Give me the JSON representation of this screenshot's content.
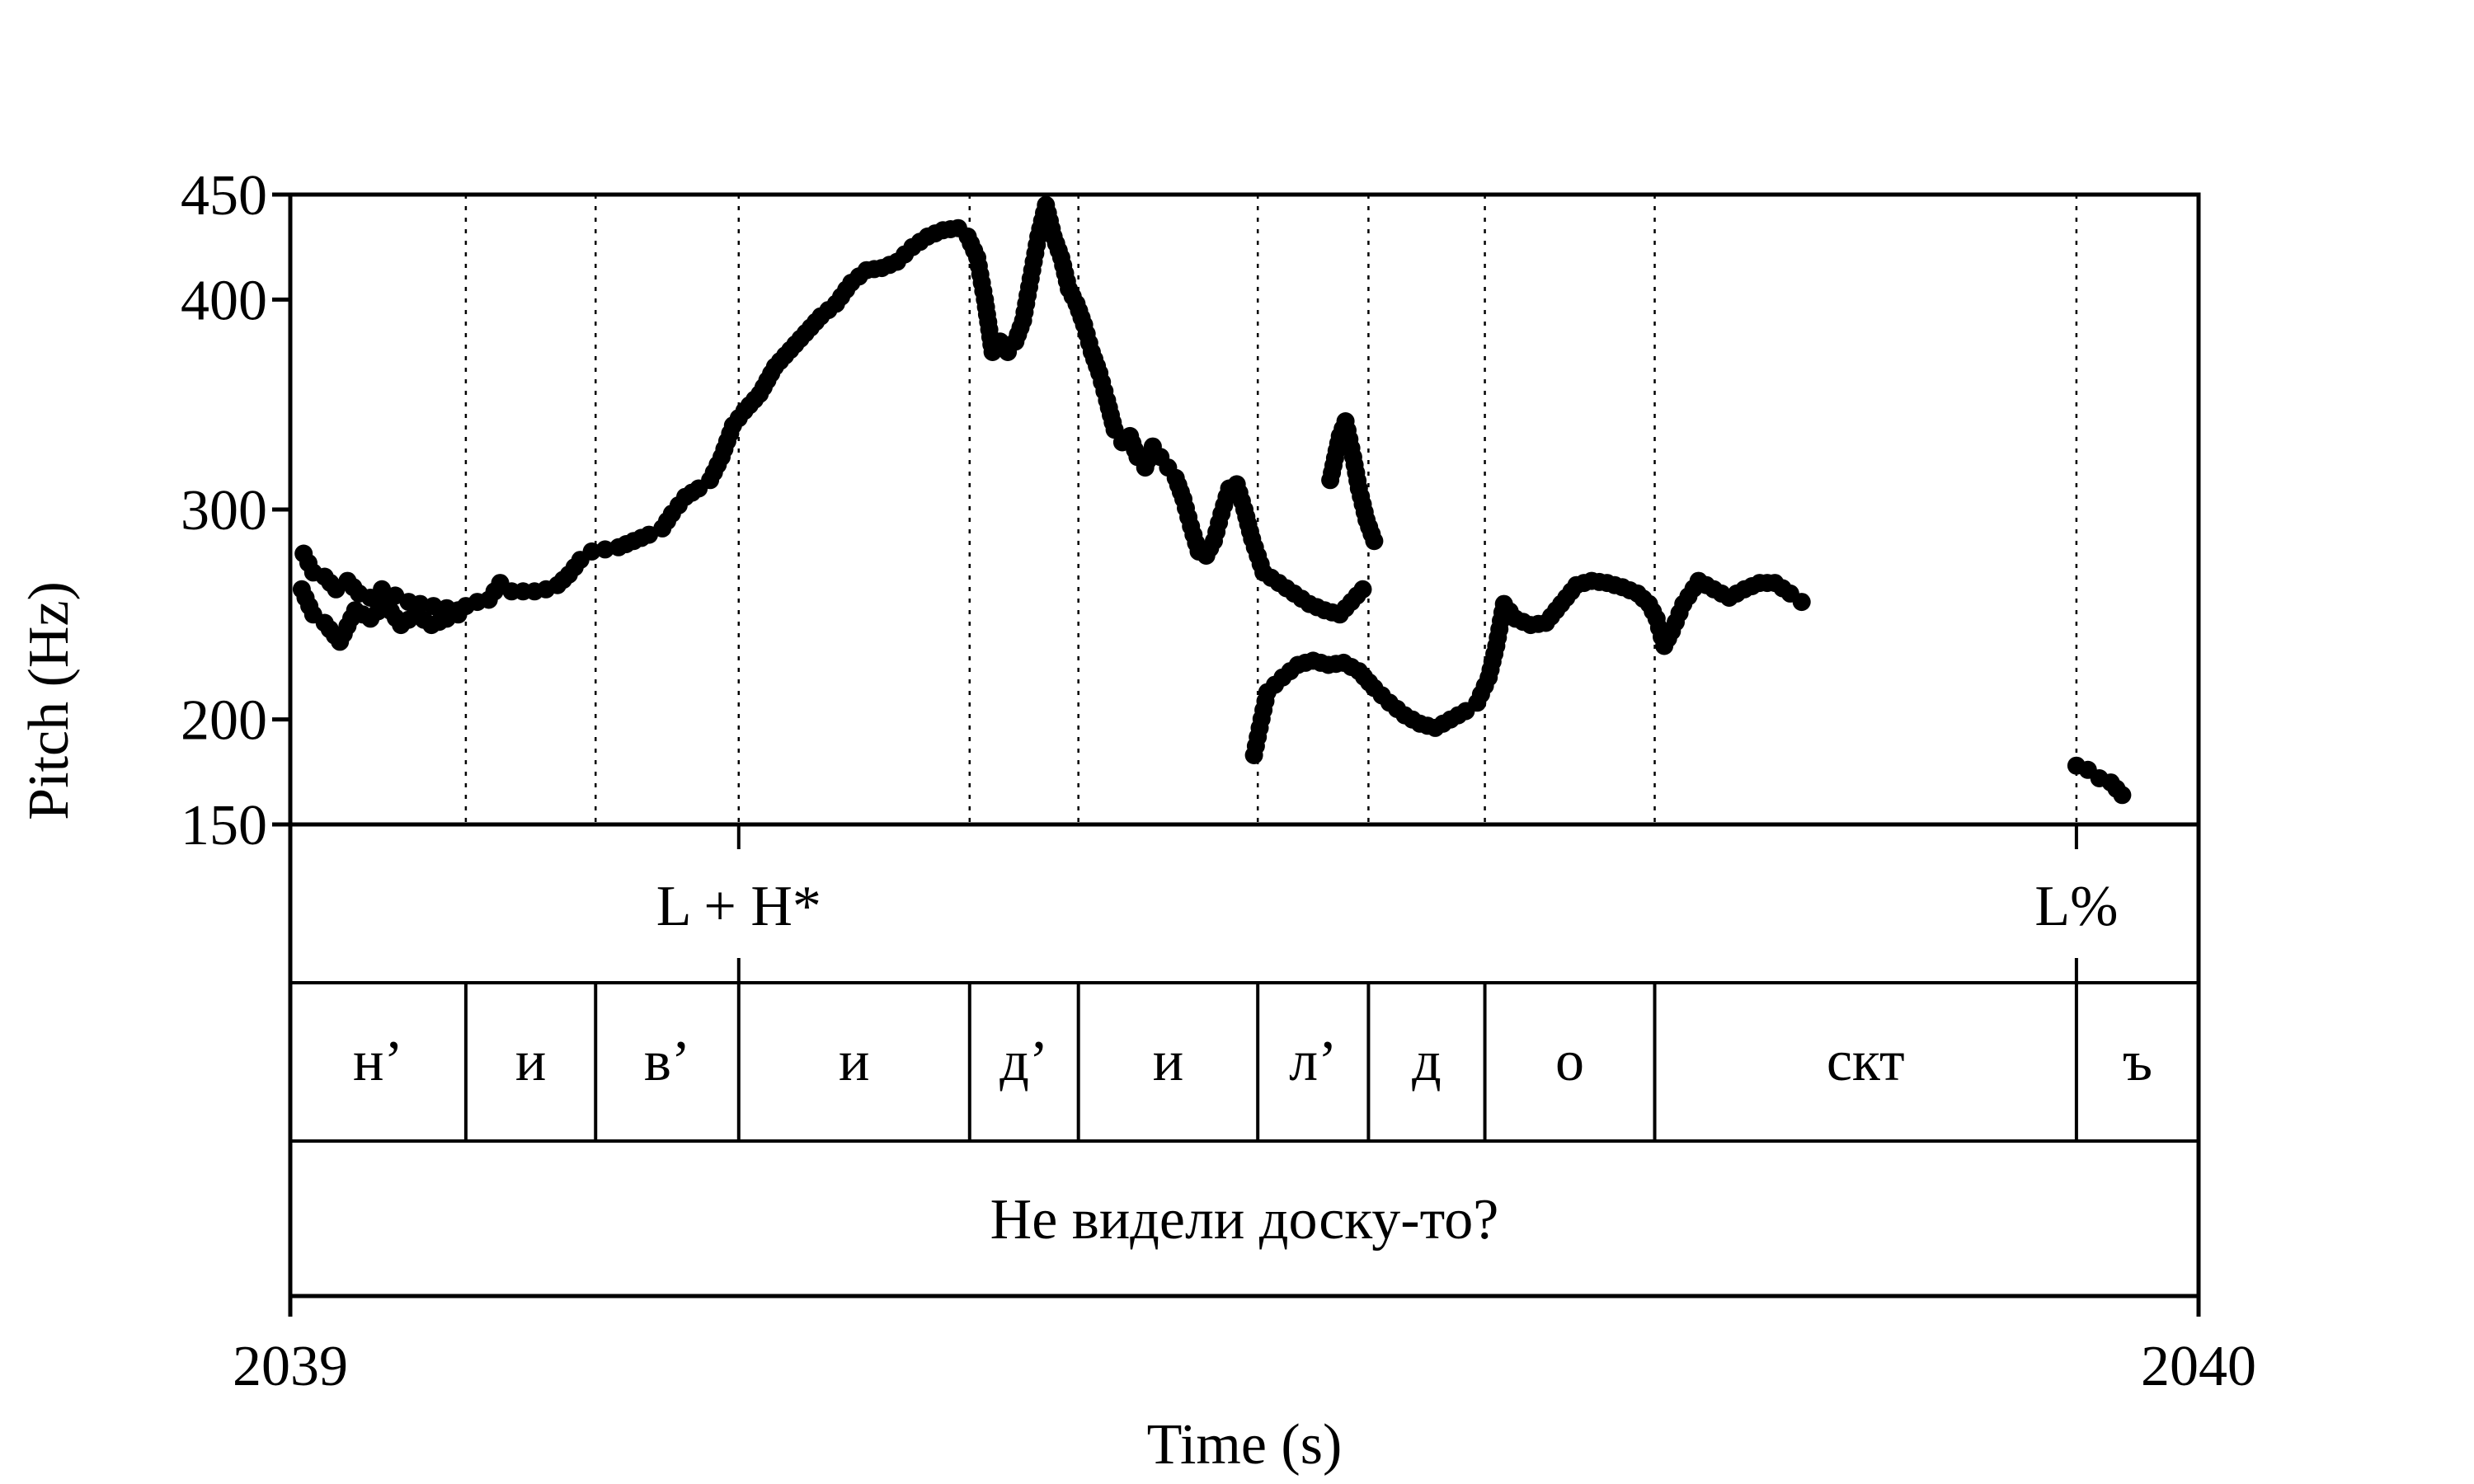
{
  "chart_data": {
    "type": "scatter",
    "xlabel": "Time (s)",
    "ylabel": "Pitch (Hz)",
    "xlim": [
      2039,
      2040
    ],
    "ylim": [
      150,
      450
    ],
    "x_ticks": [
      "2039",
      "2040"
    ],
    "y_ticks": [
      {
        "value": 150,
        "label": "150"
      },
      {
        "value": 200,
        "label": "200"
      },
      {
        "value": 300,
        "label": "300"
      },
      {
        "value": 400,
        "label": "400"
      },
      {
        "value": 450,
        "label": "450"
      }
    ],
    "boundaries": [
      2039.092,
      2039.16,
      2039.235,
      2039.356,
      2039.413,
      2039.507,
      2039.565,
      2039.626,
      2039.715,
      2039.936
    ],
    "tones": [
      {
        "label": "L + H*",
        "time": 2039.235
      },
      {
        "label": "L%",
        "time": 2039.936
      }
    ],
    "segments": [
      {
        "label": "н’",
        "start": 2039.0,
        "end": 2039.092
      },
      {
        "label": "и",
        "start": 2039.092,
        "end": 2039.16
      },
      {
        "label": "в’",
        "start": 2039.16,
        "end": 2039.235
      },
      {
        "label": "и",
        "start": 2039.235,
        "end": 2039.356
      },
      {
        "label": "д’",
        "start": 2039.356,
        "end": 2039.413
      },
      {
        "label": "и",
        "start": 2039.413,
        "end": 2039.507
      },
      {
        "label": "л’",
        "start": 2039.507,
        "end": 2039.565
      },
      {
        "label": "д",
        "start": 2039.565,
        "end": 2039.626
      },
      {
        "label": "о",
        "start": 2039.626,
        "end": 2039.715
      },
      {
        "label": "скт",
        "start": 2039.715,
        "end": 2039.936
      },
      {
        "label": "ъ",
        "start": 2039.936,
        "end": 2040.0
      }
    ],
    "sentence": "Не видели доску-то?",
    "pitch_contours": [
      [
        [
          2039.007,
          279
        ],
        [
          2039.012,
          270
        ],
        [
          2039.018,
          268
        ],
        [
          2039.024,
          262
        ],
        [
          2039.03,
          266
        ],
        [
          2039.036,
          260
        ],
        [
          2039.042,
          258
        ],
        [
          2039.048,
          262
        ],
        [
          2039.055,
          259
        ],
        [
          2039.062,
          256
        ],
        [
          2039.068,
          255
        ],
        [
          2039.075,
          254
        ],
        [
          2039.082,
          253
        ],
        [
          2039.088,
          252
        ],
        [
          2039.092,
          254
        ],
        [
          2039.098,
          256
        ],
        [
          2039.104,
          257
        ],
        [
          2039.11,
          265
        ],
        [
          2039.116,
          261
        ],
        [
          2039.122,
          261
        ],
        [
          2039.128,
          261
        ],
        [
          2039.134,
          262
        ],
        [
          2039.14,
          264
        ],
        [
          2039.146,
          269
        ],
        [
          2039.152,
          276
        ],
        [
          2039.158,
          280
        ],
        [
          2039.165,
          281
        ],
        [
          2039.172,
          282
        ],
        [
          2039.18,
          285
        ],
        [
          2039.188,
          288
        ],
        [
          2039.195,
          291
        ],
        [
          2039.2,
          298
        ],
        [
          2039.207,
          306
        ],
        [
          2039.214,
          310
        ],
        [
          2039.22,
          314
        ],
        [
          2039.226,
          325
        ],
        [
          2039.232,
          340
        ],
        [
          2039.238,
          347
        ],
        [
          2039.246,
          355
        ],
        [
          2039.254,
          368
        ],
        [
          2039.262,
          376
        ],
        [
          2039.27,
          384
        ],
        [
          2039.278,
          392
        ],
        [
          2039.286,
          398
        ],
        [
          2039.294,
          408
        ],
        [
          2039.302,
          414
        ],
        [
          2039.31,
          415
        ],
        [
          2039.318,
          418
        ],
        [
          2039.326,
          425
        ],
        [
          2039.334,
          430
        ],
        [
          2039.342,
          433
        ],
        [
          2039.35,
          434
        ],
        [
          2039.355,
          430
        ],
        [
          2039.36,
          420
        ],
        [
          2039.364,
          400
        ],
        [
          2039.368,
          375
        ],
        [
          2039.372,
          380
        ],
        [
          2039.376,
          375
        ],
        [
          2039.38,
          380
        ],
        [
          2039.384,
          390
        ],
        [
          2039.388,
          410
        ],
        [
          2039.392,
          430
        ],
        [
          2039.396,
          445
        ],
        [
          2039.4,
          430
        ],
        [
          2039.404,
          420
        ],
        [
          2039.408,
          405
        ],
        [
          2039.412,
          398
        ],
        [
          2039.416,
          388
        ],
        [
          2039.42,
          375
        ],
        [
          2039.424,
          365
        ],
        [
          2039.428,
          352
        ],
        [
          2039.432,
          338
        ],
        [
          2039.436,
          332
        ],
        [
          2039.44,
          335
        ],
        [
          2039.444,
          325
        ],
        [
          2039.448,
          320
        ],
        [
          2039.452,
          330
        ],
        [
          2039.456,
          325
        ],
        [
          2039.46,
          320
        ],
        [
          2039.464,
          315
        ],
        [
          2039.468,
          305
        ],
        [
          2039.472,
          292
        ],
        [
          2039.476,
          280
        ],
        [
          2039.48,
          278
        ],
        [
          2039.484,
          285
        ],
        [
          2039.488,
          298
        ],
        [
          2039.492,
          310
        ],
        [
          2039.496,
          312
        ],
        [
          2039.5,
          300
        ],
        [
          2039.504,
          286
        ],
        [
          2039.51,
          270
        ],
        [
          2039.518,
          265
        ],
        [
          2039.526,
          260
        ],
        [
          2039.534,
          255
        ],
        [
          2039.542,
          252
        ],
        [
          2039.55,
          250
        ],
        [
          2039.556,
          256
        ],
        [
          2039.562,
          262
        ]
      ],
      [
        [
          2039.545,
          314
        ],
        [
          2039.55,
          335
        ],
        [
          2039.553,
          342
        ],
        [
          2039.557,
          325
        ],
        [
          2039.56,
          310
        ],
        [
          2039.564,
          295
        ],
        [
          2039.568,
          285
        ]
      ],
      [
        [
          2039.006,
          262
        ],
        [
          2039.012,
          250
        ],
        [
          2039.018,
          246
        ],
        [
          2039.026,
          237
        ],
        [
          2039.034,
          252
        ],
        [
          2039.042,
          248
        ],
        [
          2039.05,
          255
        ],
        [
          2039.058,
          245
        ],
        [
          2039.066,
          250
        ],
        [
          2039.074,
          245
        ],
        [
          2039.082,
          248
        ],
        [
          2039.088,
          250
        ]
      ],
      [
        [
          2039.505,
          183
        ],
        [
          2039.508,
          196
        ],
        [
          2039.512,
          213
        ],
        [
          2039.52,
          220
        ],
        [
          2039.528,
          226
        ],
        [
          2039.536,
          228
        ],
        [
          2039.544,
          226
        ],
        [
          2039.552,
          227
        ],
        [
          2039.56,
          223
        ],
        [
          2039.568,
          215
        ],
        [
          2039.576,
          208
        ],
        [
          2039.584,
          202
        ],
        [
          2039.592,
          198
        ],
        [
          2039.6,
          196
        ],
        [
          2039.608,
          200
        ],
        [
          2039.616,
          204
        ],
        [
          2039.622,
          208
        ],
        [
          2039.628,
          220
        ],
        [
          2039.632,
          235
        ],
        [
          2039.636,
          255
        ],
        [
          2039.642,
          248
        ],
        [
          2039.65,
          245
        ],
        [
          2039.658,
          246
        ],
        [
          2039.666,
          255
        ],
        [
          2039.674,
          264
        ],
        [
          2039.682,
          266
        ],
        [
          2039.69,
          265
        ],
        [
          2039.698,
          263
        ],
        [
          2039.706,
          260
        ],
        [
          2039.712,
          255
        ],
        [
          2039.716,
          248
        ],
        [
          2039.72,
          235
        ],
        [
          2039.724,
          242
        ],
        [
          2039.73,
          255
        ],
        [
          2039.738,
          266
        ],
        [
          2039.746,
          262
        ],
        [
          2039.754,
          258
        ],
        [
          2039.762,
          262
        ],
        [
          2039.77,
          265
        ],
        [
          2039.778,
          265
        ],
        [
          2039.786,
          260
        ],
        [
          2039.792,
          256
        ]
      ],
      [
        [
          2039.936,
          178
        ],
        [
          2039.942,
          176
        ],
        [
          2039.948,
          172
        ],
        [
          2039.954,
          170
        ],
        [
          2039.96,
          164
        ]
      ]
    ]
  }
}
